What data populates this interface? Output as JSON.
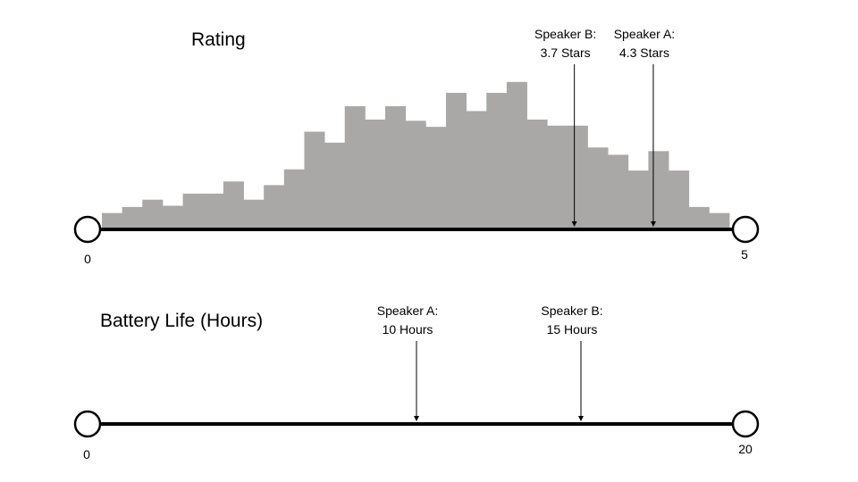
{
  "chart_data": [
    {
      "type": "bar",
      "title": "Rating",
      "xlim": [
        0,
        5
      ],
      "axis_start_label": "0",
      "axis_end_label": "5",
      "grid": false,
      "bin_count": 31,
      "values": [
        0.12,
        0.17,
        0.23,
        0.18,
        0.28,
        0.28,
        0.38,
        0.23,
        0.35,
        0.48,
        0.79,
        0.7,
        1.0,
        0.89,
        1.0,
        0.88,
        0.83,
        1.11,
        0.96,
        1.11,
        1.2,
        0.89,
        0.84,
        0.84,
        0.66,
        0.6,
        0.47,
        0.63,
        0.47,
        0.17,
        0.12
      ],
      "annotations": [
        {
          "label": "Speaker B:",
          "value_label": "3.7 Stars",
          "x": 3.7
        },
        {
          "label": "Speaker A:",
          "value_label": "4.3 Stars",
          "x": 4.3
        }
      ]
    },
    {
      "type": "line",
      "title": "Battery Life (Hours)",
      "xlim": [
        0,
        20
      ],
      "axis_start_label": "0",
      "axis_end_label": "20",
      "grid": false,
      "annotations": [
        {
          "label": "Speaker A:",
          "value_label": "10 Hours",
          "x": 10
        },
        {
          "label": "Speaker B:",
          "value_label": "15 Hours",
          "x": 15
        }
      ]
    }
  ]
}
